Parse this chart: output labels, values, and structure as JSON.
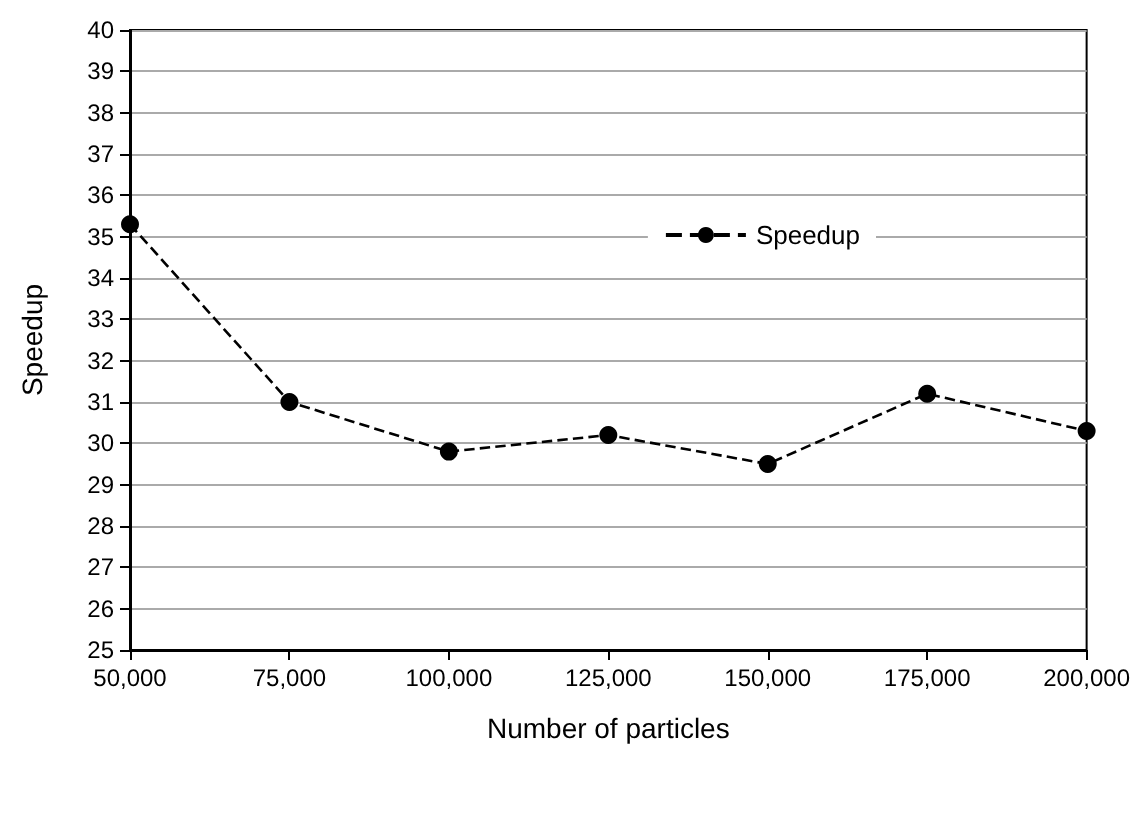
{
  "chart_data": {
    "type": "line",
    "xlabel": "Number of particles",
    "ylabel": "Speedup",
    "x": [
      50000,
      75000,
      100000,
      125000,
      150000,
      175000,
      200000
    ],
    "series": [
      {
        "name": "Speedup",
        "color": "#000000",
        "values": [
          35.3,
          31.0,
          29.8,
          30.2,
          29.5,
          31.2,
          30.3
        ]
      }
    ],
    "xlim": [
      50000,
      200000
    ],
    "xticks": [
      {
        "value": 50000,
        "label": "50,000"
      },
      {
        "value": 75000,
        "label": "75,000"
      },
      {
        "value": 100000,
        "label": "100,000"
      },
      {
        "value": 125000,
        "label": "125,000"
      },
      {
        "value": 150000,
        "label": "150,000"
      },
      {
        "value": 175000,
        "label": "175,000"
      },
      {
        "value": 200000,
        "label": "200,000"
      }
    ],
    "ylim": [
      25,
      40
    ],
    "yticks": [
      25,
      26,
      27,
      28,
      29,
      30,
      31,
      32,
      33,
      34,
      35,
      36,
      37,
      38,
      39,
      40
    ],
    "grid": "y",
    "legend": "right",
    "marker": "circle",
    "line_style": "dashed"
  }
}
